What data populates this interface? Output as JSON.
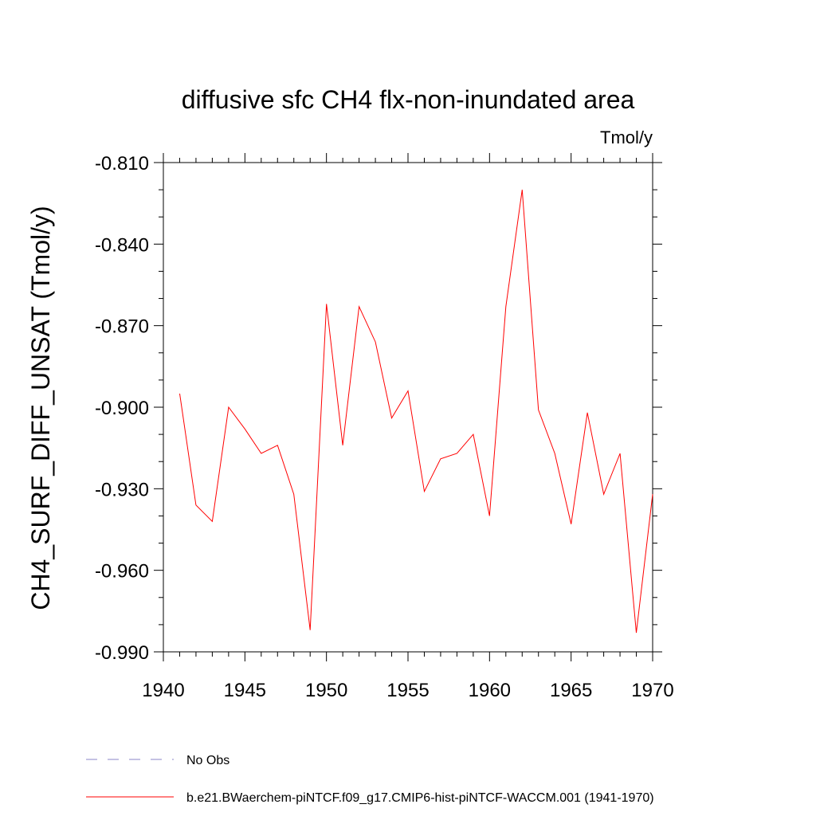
{
  "chart_data": {
    "type": "line",
    "title": "diffusive sfc CH4 flx-non-inundated area",
    "units": "Tmol/y",
    "ylabel": "CH4_SURF_DIFF_UNSAT  (Tmol/y)",
    "xlabel": "",
    "xlim": [
      1940,
      1970
    ],
    "ylim": [
      -0.99,
      -0.81
    ],
    "x_ticks": [
      1940,
      1945,
      1950,
      1955,
      1960,
      1965,
      1970
    ],
    "x_tick_labels": [
      "1940",
      "1945",
      "1950",
      "1955",
      "1960",
      "1965",
      "1970"
    ],
    "y_ticks": [
      -0.81,
      -0.84,
      -0.87,
      -0.9,
      -0.93,
      -0.96,
      -0.99
    ],
    "y_tick_labels": [
      "-0.810",
      "-0.840",
      "-0.870",
      "-0.900",
      "-0.930",
      "-0.960",
      "-0.990"
    ],
    "grid": false,
    "legend_position": "bottom",
    "series": [
      {
        "name": "b.e21.BWaerchem-piNTCF.f09_g17.CMIP6-hist-piNTCF-WACCM.001 (1941-1970)",
        "color": "#ff0000",
        "style": "solid",
        "x": [
          1941,
          1942,
          1943,
          1944,
          1945,
          1946,
          1947,
          1948,
          1949,
          1950,
          1951,
          1952,
          1953,
          1954,
          1955,
          1956,
          1957,
          1958,
          1959,
          1960,
          1961,
          1962,
          1963,
          1964,
          1965,
          1966,
          1967,
          1968,
          1969,
          1970
        ],
        "values": [
          -0.895,
          -0.936,
          -0.942,
          -0.9,
          -0.908,
          -0.917,
          -0.914,
          -0.932,
          -0.982,
          -0.862,
          -0.914,
          -0.863,
          -0.876,
          -0.904,
          -0.894,
          -0.931,
          -0.919,
          -0.917,
          -0.91,
          -0.94,
          -0.863,
          -0.82,
          -0.901,
          -0.917,
          -0.943,
          -0.902,
          -0.932,
          -0.917,
          -0.983,
          -0.932
        ]
      },
      {
        "name": "No Obs",
        "color": "#8b86c8",
        "style": "dashed",
        "x": [],
        "values": []
      }
    ]
  }
}
